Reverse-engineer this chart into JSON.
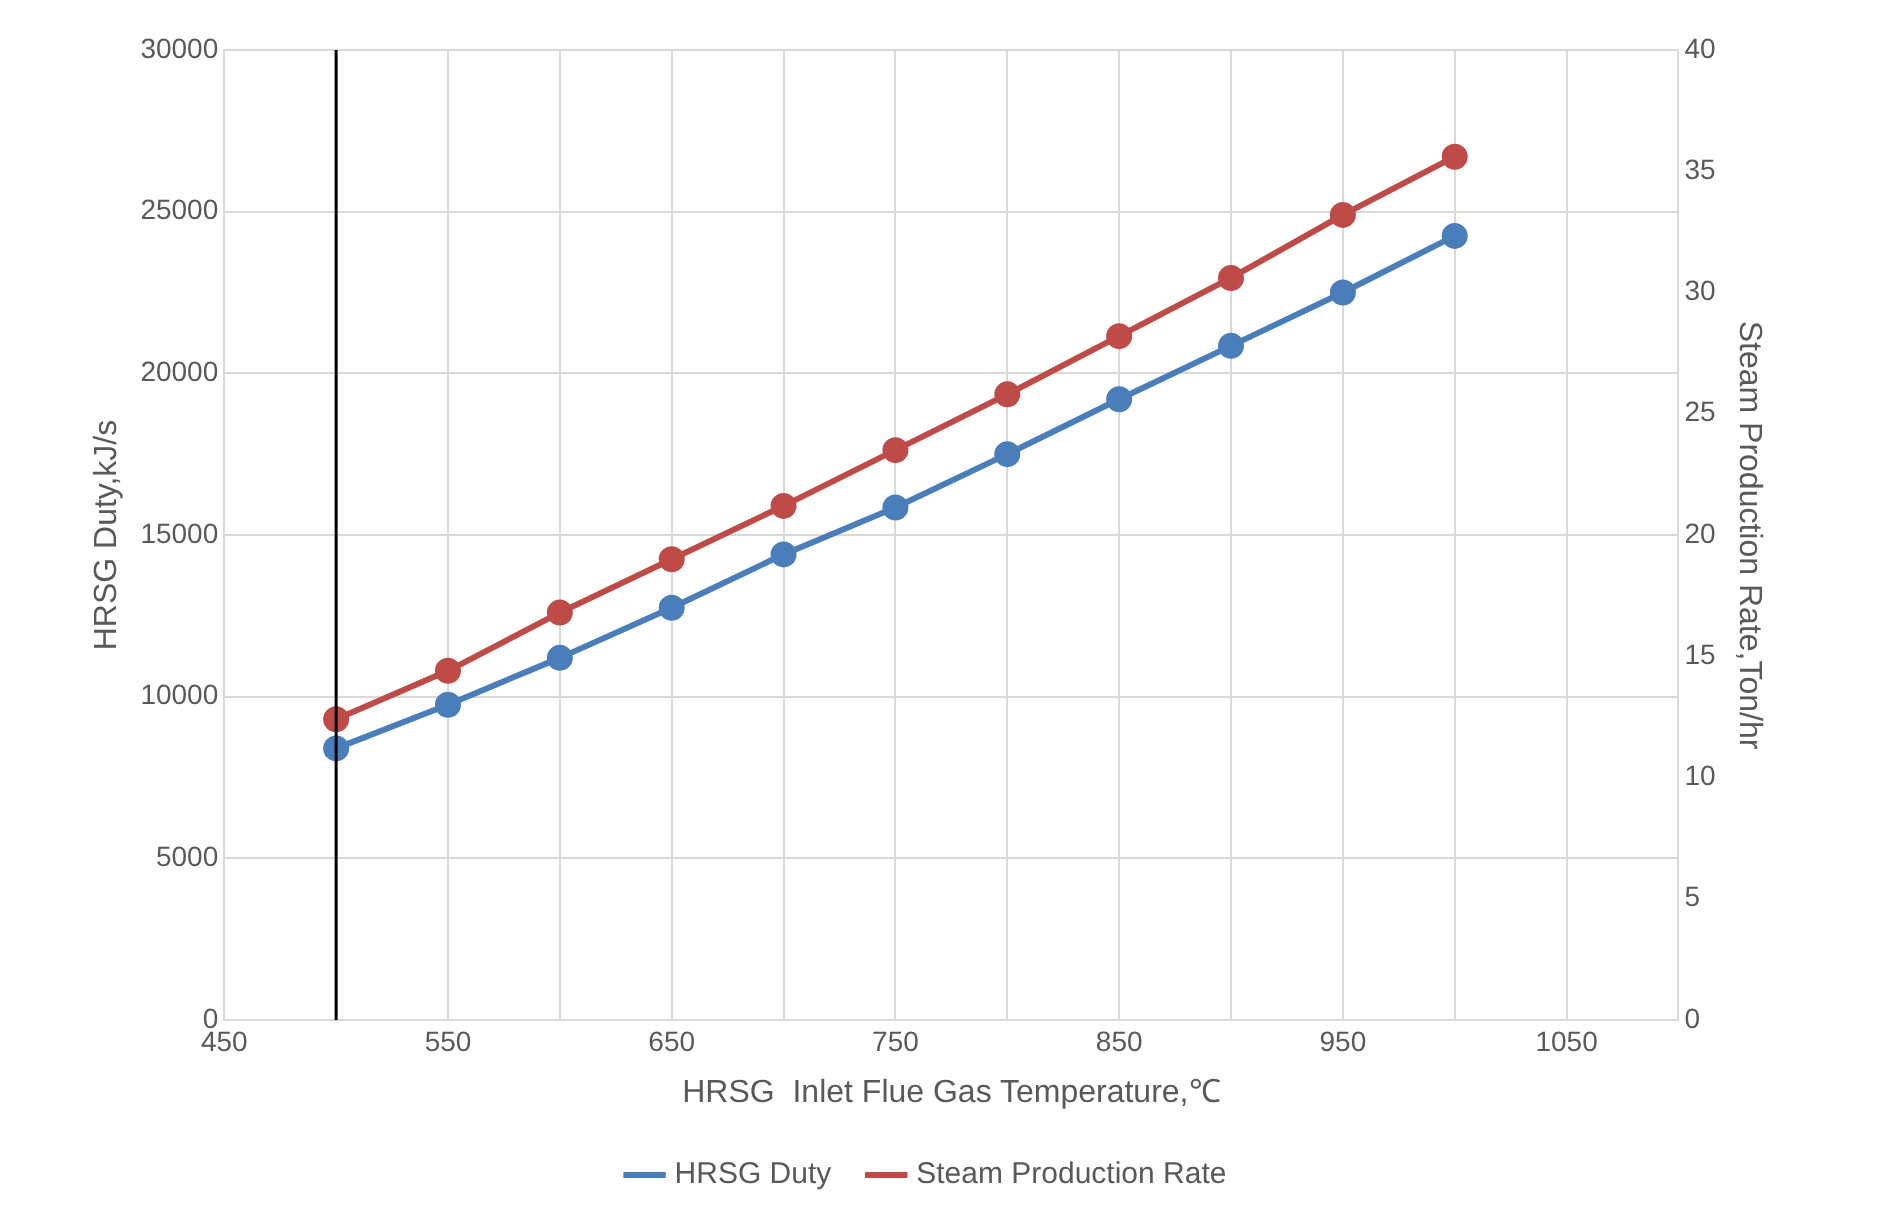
{
  "chart_data": {
    "type": "line",
    "xlabel": "HRSG  Inlet Flue Gas Temperature,℃",
    "ylabel": "HRSG Duty,kJ/s",
    "y2label": "Steam Production Rate,Ton/hr",
    "x": [
      500,
      550,
      600,
      650,
      700,
      750,
      800,
      850,
      900,
      950,
      1000
    ],
    "series": [
      {
        "name": "HRSG Duty",
        "color": "#4a7ebb",
        "values": [
          8400,
          9750,
          11200,
          12750,
          14400,
          15850,
          17500,
          19200,
          20850,
          22500,
          24250
        ]
      },
      {
        "name": "Steam Production Rate",
        "color": "#be4b48",
        "axis": "y2",
        "values": [
          12.4,
          14.4,
          16.8,
          19.0,
          21.2,
          23.5,
          25.8,
          28.2,
          30.6,
          33.2,
          35.6
        ]
      }
    ],
    "xlim": [
      450,
      1100
    ],
    "xticks": [
      450,
      {
        "value": 500,
        "label": null
      },
      550,
      {
        "value": 600,
        "label": null
      },
      650,
      {
        "value": 700,
        "label": null
      },
      750,
      {
        "value": 800,
        "label": null
      },
      850,
      {
        "value": 900,
        "label": null
      },
      950,
      {
        "value": 1000,
        "label": null
      },
      1050,
      {
        "value": 1100,
        "label": null
      }
    ],
    "ylim": [
      0,
      30000
    ],
    "yticks": [
      0,
      5000,
      10000,
      15000,
      20000,
      25000,
      30000
    ],
    "y2lim": [
      0,
      40
    ],
    "y2ticks": [
      0,
      5,
      10,
      15,
      20,
      25,
      30,
      35,
      40
    ],
    "ref_lines": [
      {
        "axis": "x",
        "value": 500,
        "color": "#000000"
      }
    ],
    "grid": true,
    "legend": "bottom",
    "marker": "circle",
    "line_style": "solid"
  }
}
